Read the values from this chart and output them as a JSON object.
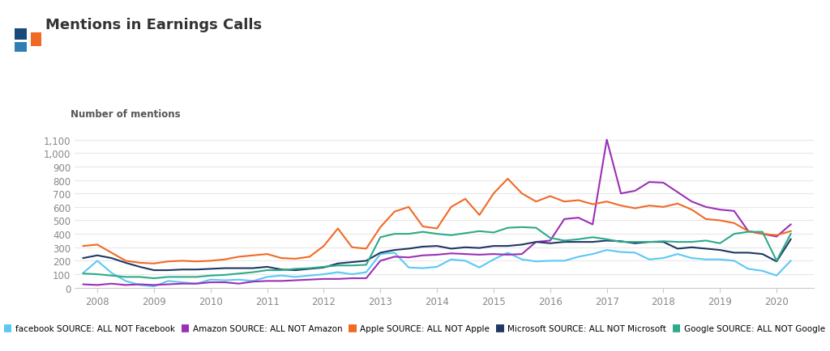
{
  "title": "Mentions in Earnings Calls",
  "axis_label": "Number of mentions",
  "background_color": "#ffffff",
  "plot_bg_color": "#ffffff",
  "ylim": [
    0,
    1150
  ],
  "yticks": [
    0,
    100,
    200,
    300,
    400,
    500,
    600,
    700,
    800,
    900,
    1000,
    1100
  ],
  "xlim": [
    2007.6,
    2020.65
  ],
  "series": [
    {
      "name": "facebook SOURCE: ALL NOT Facebook",
      "color": "#5bc8f5",
      "data_x": [
        2007.75,
        2008.0,
        2008.25,
        2008.5,
        2008.75,
        2009.0,
        2009.25,
        2009.5,
        2009.75,
        2010.0,
        2010.25,
        2010.5,
        2010.75,
        2011.0,
        2011.25,
        2011.5,
        2011.75,
        2012.0,
        2012.25,
        2012.5,
        2012.75,
        2013.0,
        2013.25,
        2013.5,
        2013.75,
        2014.0,
        2014.25,
        2014.5,
        2014.75,
        2015.0,
        2015.25,
        2015.5,
        2015.75,
        2016.0,
        2016.25,
        2016.5,
        2016.75,
        2017.0,
        2017.25,
        2017.5,
        2017.75,
        2018.0,
        2018.25,
        2018.5,
        2018.75,
        2019.0,
        2019.25,
        2019.5,
        2019.75,
        2020.0,
        2020.25
      ],
      "data_y": [
        110,
        200,
        110,
        50,
        20,
        10,
        50,
        40,
        30,
        60,
        55,
        60,
        50,
        80,
        90,
        80,
        90,
        100,
        115,
        100,
        115,
        250,
        260,
        150,
        145,
        155,
        210,
        200,
        150,
        210,
        260,
        210,
        195,
        200,
        200,
        230,
        250,
        280,
        265,
        260,
        210,
        220,
        250,
        220,
        210,
        210,
        200,
        140,
        125,
        90,
        200
      ]
    },
    {
      "name": "Amazon SOURCE: ALL NOT Amazon",
      "color": "#9b30b5",
      "data_x": [
        2007.75,
        2008.0,
        2008.25,
        2008.5,
        2008.75,
        2009.0,
        2009.25,
        2009.5,
        2009.75,
        2010.0,
        2010.25,
        2010.5,
        2010.75,
        2011.0,
        2011.25,
        2011.5,
        2011.75,
        2012.0,
        2012.25,
        2012.5,
        2012.75,
        2013.0,
        2013.25,
        2013.5,
        2013.75,
        2014.0,
        2014.25,
        2014.5,
        2014.75,
        2015.0,
        2015.25,
        2015.5,
        2015.75,
        2016.0,
        2016.25,
        2016.5,
        2016.75,
        2017.0,
        2017.25,
        2017.5,
        2017.75,
        2018.0,
        2018.25,
        2018.5,
        2018.75,
        2019.0,
        2019.25,
        2019.5,
        2019.75,
        2020.0,
        2020.25
      ],
      "data_y": [
        25,
        20,
        30,
        20,
        25,
        20,
        25,
        30,
        30,
        40,
        40,
        30,
        45,
        50,
        50,
        55,
        60,
        65,
        65,
        70,
        70,
        200,
        230,
        225,
        240,
        245,
        255,
        250,
        245,
        250,
        245,
        250,
        340,
        350,
        510,
        520,
        470,
        1100,
        700,
        720,
        785,
        780,
        710,
        640,
        600,
        580,
        570,
        420,
        400,
        380,
        470
      ]
    },
    {
      "name": "Apple SOURCE: ALL NOT Apple",
      "color": "#f06a25",
      "data_x": [
        2007.75,
        2008.0,
        2008.25,
        2008.5,
        2008.75,
        2009.0,
        2009.25,
        2009.5,
        2009.75,
        2010.0,
        2010.25,
        2010.5,
        2010.75,
        2011.0,
        2011.25,
        2011.5,
        2011.75,
        2012.0,
        2012.25,
        2012.5,
        2012.75,
        2013.0,
        2013.25,
        2013.5,
        2013.75,
        2014.0,
        2014.25,
        2014.5,
        2014.75,
        2015.0,
        2015.25,
        2015.5,
        2015.75,
        2016.0,
        2016.25,
        2016.5,
        2016.75,
        2017.0,
        2017.25,
        2017.5,
        2017.75,
        2018.0,
        2018.25,
        2018.5,
        2018.75,
        2019.0,
        2019.25,
        2019.5,
        2019.75,
        2020.0,
        2020.25
      ],
      "data_y": [
        310,
        320,
        260,
        200,
        185,
        180,
        195,
        200,
        195,
        200,
        210,
        230,
        240,
        250,
        220,
        215,
        230,
        310,
        440,
        300,
        290,
        450,
        565,
        600,
        455,
        440,
        600,
        660,
        540,
        700,
        810,
        700,
        640,
        680,
        640,
        650,
        620,
        640,
        610,
        590,
        610,
        600,
        625,
        580,
        510,
        500,
        480,
        420,
        400,
        390,
        420
      ]
    },
    {
      "name": "Microsoft SOURCE: ALL NOT Microsoft",
      "color": "#1f3864",
      "data_x": [
        2007.75,
        2008.0,
        2008.25,
        2008.5,
        2008.75,
        2009.0,
        2009.25,
        2009.5,
        2009.75,
        2010.0,
        2010.25,
        2010.5,
        2010.75,
        2011.0,
        2011.25,
        2011.5,
        2011.75,
        2012.0,
        2012.25,
        2012.5,
        2012.75,
        2013.0,
        2013.25,
        2013.5,
        2013.75,
        2014.0,
        2014.25,
        2014.5,
        2014.75,
        2015.0,
        2015.25,
        2015.5,
        2015.75,
        2016.0,
        2016.25,
        2016.5,
        2016.75,
        2017.0,
        2017.25,
        2017.5,
        2017.75,
        2018.0,
        2018.25,
        2018.5,
        2018.75,
        2019.0,
        2019.25,
        2019.5,
        2019.75,
        2020.0,
        2020.25
      ],
      "data_y": [
        220,
        240,
        220,
        185,
        155,
        130,
        130,
        135,
        135,
        140,
        145,
        145,
        145,
        155,
        135,
        130,
        140,
        150,
        180,
        190,
        200,
        260,
        280,
        290,
        305,
        310,
        290,
        300,
        295,
        310,
        310,
        320,
        340,
        330,
        340,
        340,
        340,
        350,
        345,
        330,
        340,
        340,
        290,
        300,
        290,
        280,
        260,
        260,
        250,
        195,
        360
      ]
    },
    {
      "name": "Google SOURCE: ALL NOT Google",
      "color": "#2daa88",
      "data_x": [
        2007.75,
        2008.0,
        2008.25,
        2008.5,
        2008.75,
        2009.0,
        2009.25,
        2009.5,
        2009.75,
        2010.0,
        2010.25,
        2010.5,
        2010.75,
        2011.0,
        2011.25,
        2011.5,
        2011.75,
        2012.0,
        2012.25,
        2012.5,
        2012.75,
        2013.0,
        2013.25,
        2013.5,
        2013.75,
        2014.0,
        2014.25,
        2014.5,
        2014.75,
        2015.0,
        2015.25,
        2015.5,
        2015.75,
        2016.0,
        2016.25,
        2016.5,
        2016.75,
        2017.0,
        2017.25,
        2017.5,
        2017.75,
        2018.0,
        2018.25,
        2018.5,
        2018.75,
        2019.0,
        2019.25,
        2019.5,
        2019.75,
        2020.0,
        2020.25
      ],
      "data_y": [
        105,
        100,
        90,
        80,
        80,
        70,
        80,
        80,
        80,
        90,
        95,
        105,
        115,
        130,
        130,
        140,
        145,
        155,
        165,
        165,
        170,
        375,
        400,
        400,
        415,
        400,
        390,
        405,
        420,
        410,
        445,
        450,
        445,
        370,
        350,
        360,
        375,
        360,
        340,
        340,
        340,
        345,
        340,
        340,
        350,
        330,
        400,
        415,
        415,
        200,
        400
      ]
    }
  ],
  "logo_blue_dark": "#1a4a7a",
  "logo_blue_light": "#2e7db5",
  "logo_orange": "#f06a25",
  "title_color": "#333333",
  "tick_color": "#aaaaaa",
  "tick_label_color": "#888888",
  "grid_color": "#e8e8e8",
  "axis_label_color": "#555555"
}
